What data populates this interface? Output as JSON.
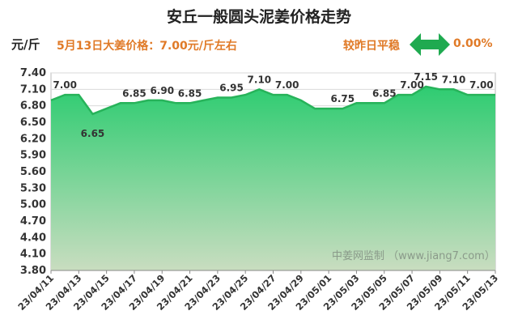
{
  "header": {
    "title": "安丘一般圆头泥姜价格走势",
    "unit": "元/斤",
    "price_text": "5月13日大姜价格：7.00元/斤左右",
    "compare_text": "较昨日平稳",
    "change_pct": "0.00%"
  },
  "watermark": "中姜网监制 （www.jiang7.com）",
  "colors": {
    "line": "#27b35a",
    "fill_top": "#2ecc71",
    "fill_bottom": "#c9ddc0",
    "accent": "#e07a27",
    "arrow": "#1faa50"
  },
  "chart_data": {
    "type": "area",
    "title": "安丘一般圆头泥姜价格走势",
    "ylabel": "元/斤",
    "ylim": [
      3.8,
      7.4
    ],
    "yticks": [
      "7.40",
      "7.10",
      "6.80",
      "6.50",
      "6.20",
      "5.90",
      "5.60",
      "5.30",
      "5.00",
      "4.70",
      "4.40",
      "4.10",
      "3.80"
    ],
    "ytick_values": [
      7.4,
      7.1,
      6.8,
      6.5,
      6.2,
      5.9,
      5.6,
      5.3,
      5.0,
      4.7,
      4.4,
      4.1,
      3.8
    ],
    "xticks": [
      "23/04/11",
      "23/04/13",
      "23/04/15",
      "23/04/17",
      "23/04/19",
      "23/04/21",
      "23/04/23",
      "23/04/25",
      "23/04/27",
      "23/04/29",
      "23/05/01",
      "23/05/03",
      "23/05/05",
      "23/05/07",
      "23/05/09",
      "23/05/11",
      "23/05/13"
    ],
    "x": [
      "23/04/11",
      "23/04/12",
      "23/04/13",
      "23/04/14",
      "23/04/15",
      "23/04/16",
      "23/04/17",
      "23/04/18",
      "23/04/19",
      "23/04/20",
      "23/04/21",
      "23/04/22",
      "23/04/23",
      "23/04/24",
      "23/04/25",
      "23/04/26",
      "23/04/27",
      "23/04/28",
      "23/04/29",
      "23/04/30",
      "23/05/01",
      "23/05/02",
      "23/05/03",
      "23/05/04",
      "23/05/05",
      "23/05/06",
      "23/05/07",
      "23/05/08",
      "23/05/09",
      "23/05/10",
      "23/05/11",
      "23/05/12",
      "23/05/13"
    ],
    "values": [
      6.9,
      7.0,
      7.0,
      6.65,
      6.75,
      6.85,
      6.85,
      6.9,
      6.9,
      6.85,
      6.85,
      6.9,
      6.95,
      6.95,
      7.0,
      7.1,
      7.0,
      7.0,
      6.9,
      6.75,
      6.75,
      6.75,
      6.85,
      6.85,
      6.85,
      7.0,
      7.0,
      7.15,
      7.1,
      7.1,
      7.0,
      7.0,
      7.0
    ],
    "annotations": [
      {
        "index": 1,
        "label": "7.00",
        "pos": "above"
      },
      {
        "index": 3,
        "label": "6.65",
        "pos": "below"
      },
      {
        "index": 6,
        "label": "6.85",
        "pos": "above"
      },
      {
        "index": 8,
        "label": "6.90",
        "pos": "above"
      },
      {
        "index": 10,
        "label": "6.85",
        "pos": "above"
      },
      {
        "index": 13,
        "label": "6.95",
        "pos": "above"
      },
      {
        "index": 15,
        "label": "7.10",
        "pos": "above"
      },
      {
        "index": 17,
        "label": "7.00",
        "pos": "above"
      },
      {
        "index": 21,
        "label": "6.75",
        "pos": "above"
      },
      {
        "index": 24,
        "label": "6.85",
        "pos": "above"
      },
      {
        "index": 26,
        "label": "7.00",
        "pos": "above"
      },
      {
        "index": 27,
        "label": "7.15",
        "pos": "above"
      },
      {
        "index": 29,
        "label": "7.10",
        "pos": "above"
      },
      {
        "index": 31,
        "label": "7.00",
        "pos": "above"
      }
    ]
  }
}
